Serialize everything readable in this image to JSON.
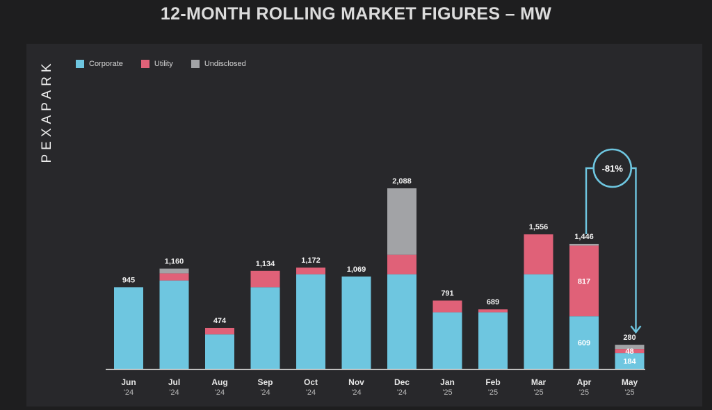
{
  "chart_data": {
    "type": "bar",
    "stacked": true,
    "title": "12-MONTH ROLLING MARKET FIGURES – MW",
    "brand": "PEXAPARK",
    "legend_position": "top-left",
    "grid": false,
    "ylim": [
      0,
      2100
    ],
    "categories": [
      "Jun",
      "Jul",
      "Aug",
      "Sep",
      "Oct",
      "Nov",
      "Dec",
      "Jan",
      "Feb",
      "Mar",
      "Apr",
      "May"
    ],
    "years": [
      "'24",
      "'24",
      "'24",
      "'24",
      "'24",
      "'24",
      "'24",
      "'25",
      "'25",
      "'25",
      "'25",
      "'25"
    ],
    "series": [
      {
        "name": "Corporate",
        "color": "#6ec6e0",
        "values": [
          945,
          1023,
          400,
          945,
          1095,
          1069,
          1095,
          655,
          655,
          1095,
          609,
          184
        ]
      },
      {
        "name": "Utility",
        "color": "#e06178",
        "values": [
          0,
          82,
          74,
          189,
          77,
          0,
          225,
          136,
          34,
          461,
          817,
          48
        ]
      },
      {
        "name": "Undisclosed",
        "color": "#a2a3a6",
        "values": [
          0,
          55,
          0,
          0,
          0,
          0,
          768,
          0,
          0,
          0,
          20,
          48
        ]
      }
    ],
    "totals": [
      "945",
      "1,160",
      "474",
      "1,134",
      "1,172",
      "1,069",
      "2,088",
      "791",
      "689",
      "1,556",
      "1,446",
      "280"
    ],
    "segment_labels": [
      {
        "index": 10,
        "series": 0,
        "text": "609"
      },
      {
        "index": 10,
        "series": 1,
        "text": "817"
      },
      {
        "index": 11,
        "series": 0,
        "text": "184"
      },
      {
        "index": 11,
        "series": 1,
        "text": "48"
      }
    ],
    "annotation": {
      "text": "-81%",
      "from_index": 10,
      "to_index": 11,
      "color": "#6ec6e0"
    }
  }
}
